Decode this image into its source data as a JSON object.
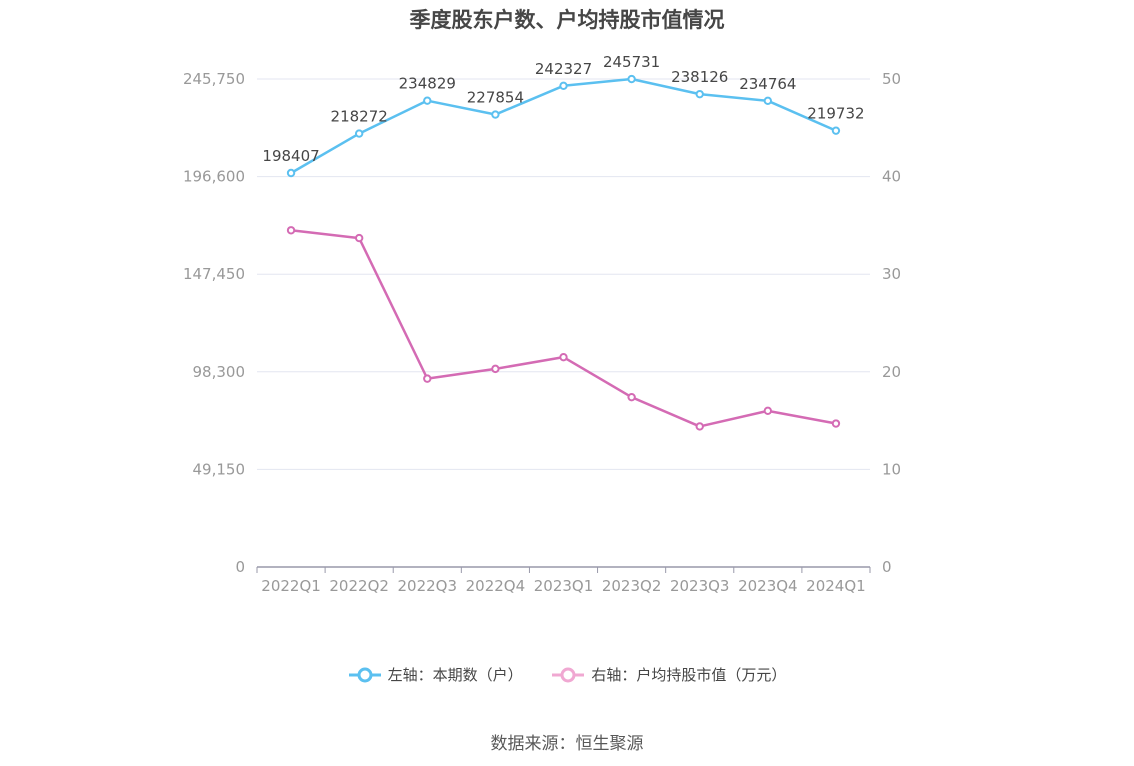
{
  "title": "季度股东户数、户均持股市值情况",
  "source": "数据来源：恒生聚源",
  "colors": {
    "left_series": "#5bc0f0",
    "right_series": "#d46bb4",
    "right_legend": "#f0a8d2",
    "grid": "#e3e6f0",
    "axis": "#9999aa",
    "label": "#464646"
  },
  "legend": [
    {
      "label": "左轴：本期数（户）"
    },
    {
      "label": "右轴：户均持股市值（万元）"
    }
  ],
  "chart_data": {
    "type": "line",
    "categories": [
      "2022Q1",
      "2022Q2",
      "2022Q3",
      "2022Q4",
      "2023Q1",
      "2023Q2",
      "2023Q3",
      "2023Q4",
      "2024Q1"
    ],
    "left_axis": {
      "ticks": [
        "0",
        "49,150",
        "98,300",
        "147,450",
        "196,600",
        "245,750"
      ],
      "ylim": [
        0,
        245750
      ]
    },
    "right_axis": {
      "ticks": [
        "0",
        "10",
        "20",
        "30",
        "40",
        "50"
      ],
      "ylim": [
        0,
        50
      ]
    },
    "series": [
      {
        "name": "左轴：本期数（户）",
        "axis": "left",
        "values": [
          198407,
          218272,
          234829,
          227854,
          242327,
          245731,
          238126,
          234764,
          219732
        ],
        "show_labels": true
      },
      {
        "name": "右轴：户均持股市值（万元）",
        "axis": "right",
        "values": [
          34.5,
          33.7,
          19.3,
          20.3,
          21.5,
          17.4,
          14.4,
          16.0,
          14.7
        ],
        "show_labels": false
      }
    ],
    "grid": true,
    "legend_position": "bottom"
  }
}
